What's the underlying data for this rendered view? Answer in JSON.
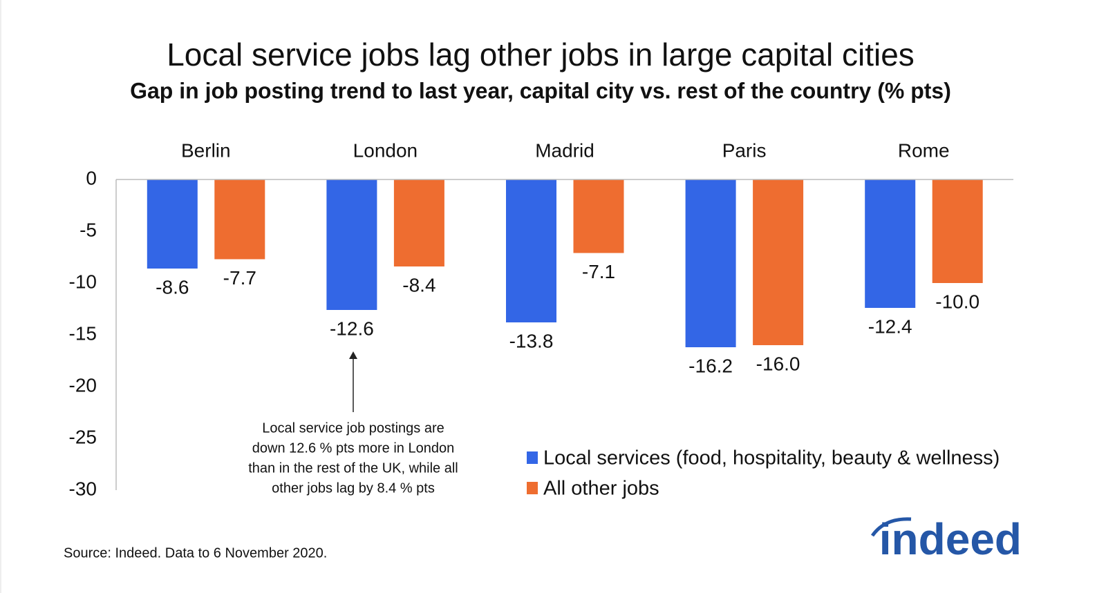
{
  "chart_data": {
    "type": "bar",
    "title": "Local service jobs lag other jobs in large capital cities",
    "subtitle": "Gap in job posting trend to last year, capital city vs. rest of the country (% pts)",
    "categories": [
      "Berlin",
      "London",
      "Madrid",
      "Paris",
      "Rome"
    ],
    "series": [
      {
        "name": "Local services (food, hospitality, beauty & wellness)",
        "color": "#3366e6",
        "values": [
          -8.6,
          -12.6,
          -13.8,
          -16.2,
          -12.4
        ],
        "value_labels": [
          "-8.6",
          "-12.6",
          "-13.8",
          "-16.2",
          "-12.4"
        ]
      },
      {
        "name": "All other jobs",
        "color": "#ee6d30",
        "values": [
          -7.7,
          -8.4,
          -7.1,
          -16.0,
          -10.0
        ],
        "value_labels": [
          "-7.7",
          "-8.4",
          "-7.1",
          "-16.0",
          "-10.0"
        ]
      }
    ],
    "ylim": [
      -30,
      0
    ],
    "yticks": [
      0,
      -5,
      -10,
      -15,
      -20,
      -25,
      -30
    ],
    "grid": false,
    "legend": "bottom-right",
    "annotation": [
      "Local service job postings are",
      "down 12.6 % pts more in London",
      "than in the rest of the UK, while all",
      "other jobs lag by 8.4 % pts"
    ],
    "source": "Source: Indeed. Data to 6 November 2020.",
    "logo": "indeed"
  }
}
